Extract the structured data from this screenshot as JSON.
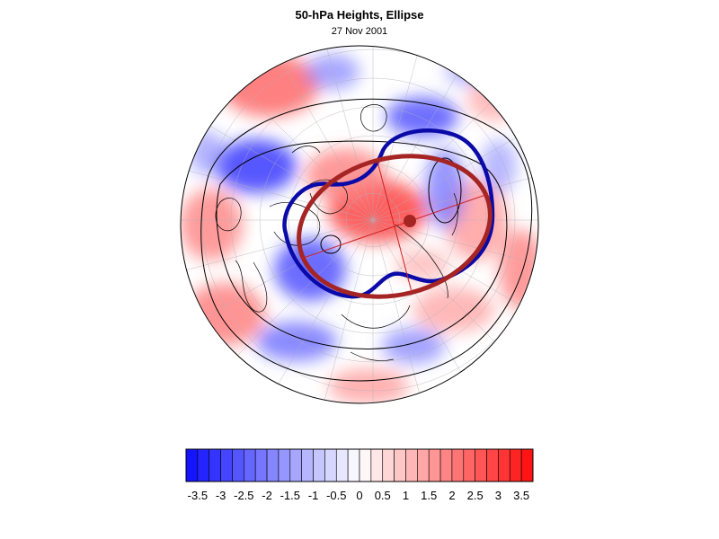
{
  "title": "50-hPa Heights, Ellipse",
  "subtitle": "27 Nov 2001",
  "colorbar": {
    "labels": [
      "-3.5",
      "-3",
      "-2.5",
      "-2",
      "-1.5",
      "-1",
      "-0.5",
      "0",
      "0.5",
      "1",
      "1.5",
      "2",
      "2.5",
      "3",
      "3.5"
    ],
    "min": -3.75,
    "max": 3.75,
    "step": 0.25,
    "negative_color": "#1414ff",
    "neutral_color": "#ffffff",
    "positive_color": "#ff1414"
  },
  "map": {
    "projection": "polar-orthographic",
    "hemisphere": "northern",
    "anomaly_field": "50-hPa height anomalies",
    "ellipse_colors": {
      "red_ellipse": "#a52424",
      "blue_contour": "#0a0aa8",
      "black_contours": "#000000",
      "axis_line": "#cc2020"
    }
  }
}
